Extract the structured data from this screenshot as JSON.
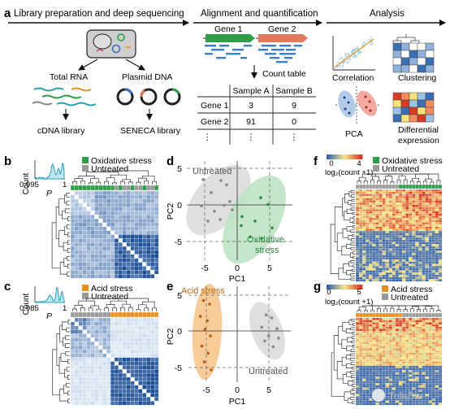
{
  "panel_a": {
    "letter": "a",
    "steps": [
      "Library preparation and deep sequencing",
      "Alignment and quantification",
      "Analysis"
    ],
    "cell_labels": [
      "Total RNA",
      "Plasmid DNA"
    ],
    "libraries": [
      "cDNA library",
      "SENECA library"
    ],
    "genes": [
      "Gene 1",
      "Gene 2"
    ],
    "count_table": {
      "title": "Count table",
      "columns": [
        "Sample A",
        "Sample B"
      ],
      "rows": [
        {
          "gene": "Gene 1",
          "values": [
            "3",
            "9"
          ]
        },
        {
          "gene": "Gene 2",
          "values": [
            "91",
            "0"
          ]
        },
        {
          "gene": "⋮",
          "values": [
            "⋮",
            "⋮"
          ]
        }
      ]
    },
    "analysis": {
      "correlation": "Correlation",
      "clustering": "Clustering",
      "pca": "PCA",
      "differential_1": "Differential",
      "differential_2": "expression"
    }
  },
  "panel_b": {
    "letter": "b",
    "legend": [
      "Oxidative stress",
      "Untreated"
    ],
    "hist_ylabel": "Count",
    "hist_tick": "0.995",
    "hist_tick_1": "1",
    "hist_xlabel": "P"
  },
  "panel_c": {
    "letter": "c",
    "legend": [
      "Acid stress",
      "Untreated"
    ],
    "hist_ylabel": "Count",
    "hist_tick": "0.985",
    "hist_tick_1": "1",
    "hist_xlabel": "P"
  },
  "panel_d": {
    "letter": "d",
    "group_labels": [
      "Untreated",
      "Oxidative",
      "stress"
    ],
    "xlabel": "PC1",
    "ylabel": "PC2",
    "xticks": [
      "-5",
      "0",
      "5"
    ],
    "yticks": [
      "5",
      "0",
      "-5"
    ],
    "chart_data": {
      "type": "scatter",
      "xlabel": "PC1",
      "ylabel": "PC2",
      "xlim": [
        -6.5,
        6.5
      ],
      "ylim": [
        -7,
        6.5
      ],
      "series": [
        {
          "name": "Untreated",
          "color": "#888888",
          "x": [
            -4.2,
            -3.2,
            -2.0,
            -1.3,
            -0.9,
            -4.4,
            -2.8,
            -1.6,
            -0.6,
            -3.6,
            -2.1
          ],
          "y": [
            3.7,
            2.0,
            3.6,
            3.0,
            0.8,
            0.2,
            -0.5,
            0.3,
            -0.3,
            -1.8,
            -1.6
          ]
        },
        {
          "name": "Oxidative stress",
          "color": "#2e8b3e",
          "x": [
            2.9,
            3.8,
            0.6,
            2.2,
            0.5,
            1.6,
            3.0,
            4.3
          ],
          "y": [
            1.3,
            0.4,
            -1.2,
            -1.8,
            -2.4,
            -3.9,
            -4.1,
            -2.7
          ]
        }
      ]
    }
  },
  "panel_e": {
    "letter": "e",
    "group_labels": [
      "Acid stress",
      "Untreated"
    ],
    "xlabel": "PC1",
    "ylabel": "PC2",
    "xticks": [
      "-5",
      "0",
      "5"
    ],
    "yticks": [
      "5",
      "0",
      "-5"
    ],
    "chart_data": {
      "type": "scatter",
      "xlabel": "PC1",
      "ylabel": "PC2",
      "xlim": [
        -7,
        7
      ],
      "ylim": [
        -7,
        6.5
      ],
      "series": [
        {
          "name": "Acid stress",
          "color": "#b85c1a",
          "x": [
            -4.4,
            -3.6,
            -4.8,
            -3.9,
            -4.2,
            -3.5,
            -4.6,
            -3.8,
            -4.3,
            -3.4
          ],
          "y": [
            4.3,
            3.8,
            2.1,
            1.5,
            0.3,
            -0.6,
            -2.0,
            -3.0,
            -4.2,
            -5.3
          ]
        },
        {
          "name": "Untreated",
          "color": "#888888",
          "x": [
            3.8,
            4.5,
            3.2,
            5.2,
            4.1,
            5.4,
            4.7,
            3.6
          ],
          "y": [
            2.3,
            1.9,
            0.6,
            0.4,
            -0.6,
            -0.9,
            -2.1,
            -1.3
          ]
        }
      ]
    }
  },
  "panel_f": {
    "letter": "f",
    "legend": [
      "Oxidative stress",
      "Untreated"
    ],
    "scale_ticks": [
      "0",
      "4"
    ],
    "scale_label": "log₂(count +1)"
  },
  "panel_g": {
    "letter": "g",
    "legend": [
      "Acid stress",
      "Untreated"
    ],
    "scale_ticks": [
      "0",
      "5"
    ],
    "scale_label": "log₂(count +1)"
  },
  "watermark": "TolaBio",
  "colors": {
    "green": "#2e9e48",
    "orange": "#e8901f",
    "grey": "#9a9a9a",
    "blue_dark": "#1f4f9a",
    "blue_light": "#c6d9ee",
    "heat_red": "#d83a26",
    "heat_yellow": "#f6e37a"
  }
}
